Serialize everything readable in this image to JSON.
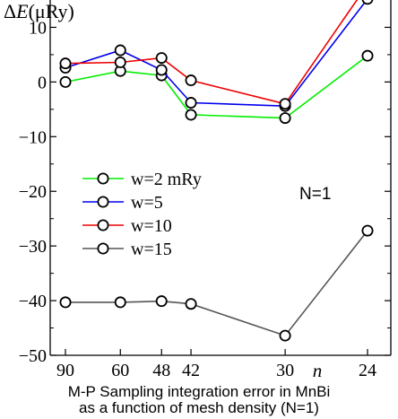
{
  "chart_data": {
    "type": "line",
    "title": "",
    "ylabel_prefix": "ΔE",
    "ylabel_unit": "(μRy)",
    "xlabel": "n",
    "x_positions": [
      90,
      60,
      48,
      42,
      30,
      24
    ],
    "x_axis_note": "x positions are proportional to 1/n (mesh density)",
    "ylim": [
      -50,
      15
    ],
    "yticks": [
      10,
      0,
      -10,
      -20,
      -30,
      -40,
      -50
    ],
    "ytick_labels": [
      "10",
      "0",
      "−10",
      "−20",
      "−30",
      "−40",
      "−50"
    ],
    "grid": false,
    "legend_position": "center-left",
    "annotation": "N=1",
    "series": [
      {
        "name": "w=2 mRy",
        "color": "#00ee00",
        "values": [
          0.0,
          2.0,
          1.2,
          -6.0,
          -6.6,
          4.8
        ]
      },
      {
        "name": "w=5",
        "color": "#0000ee",
        "values": [
          2.6,
          5.8,
          2.2,
          -3.8,
          -4.4,
          15.2
        ]
      },
      {
        "name": "w=10",
        "color": "#ee0000",
        "values": [
          3.4,
          3.6,
          4.4,
          0.3,
          -4.0,
          17.8
        ]
      },
      {
        "name": "w=15",
        "color": "#555555",
        "values": [
          -40.3,
          -40.3,
          -40.1,
          -40.6,
          -46.4,
          -27.2
        ]
      }
    ]
  },
  "caption": {
    "line1": "M-P Sampling integration error in MnBi",
    "line2": "as a function of mesh density (N=1)"
  }
}
